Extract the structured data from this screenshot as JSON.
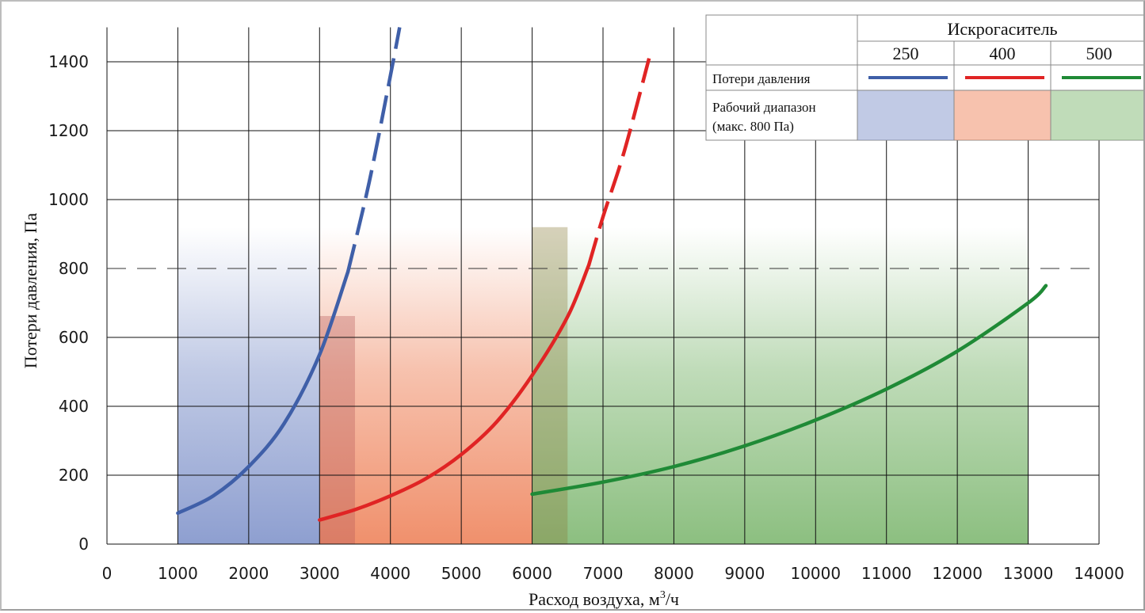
{
  "chart_data": {
    "type": "line",
    "xlabel": "Расход воздуха, м",
    "xlabel_sup": "3",
    "xlabel_tail": "/ч",
    "ylabel": "Потери давления, Па",
    "xlim": [
      0,
      14000
    ],
    "ylim": [
      0,
      1500
    ],
    "x_ticks": [
      "0",
      "1000",
      "2000",
      "3000",
      "4000",
      "5000",
      "6000",
      "7000",
      "8000",
      "9000",
      "10000",
      "11000",
      "12000",
      "13000",
      "14000"
    ],
    "y_ticks": [
      "0",
      "200",
      "400",
      "600",
      "800",
      "1000",
      "1200",
      "1400"
    ],
    "x_tick_values": [
      0,
      1000,
      2000,
      3000,
      4000,
      5000,
      6000,
      7000,
      8000,
      9000,
      10000,
      11000,
      12000,
      13000,
      14000
    ],
    "y_tick_values": [
      0,
      200,
      400,
      600,
      800,
      1000,
      1200,
      1400
    ],
    "grid": true,
    "reference_line": {
      "y": 800,
      "style": "dashed"
    },
    "series": [
      {
        "name": "250",
        "color": "#3f5fa8",
        "range_color": "#8e9fd0",
        "working_range": [
          1000,
          3000
        ],
        "solid_until": 3400,
        "points": [
          [
            1000,
            90
          ],
          [
            1500,
            140
          ],
          [
            2000,
            225
          ],
          [
            2500,
            350
          ],
          [
            3000,
            550
          ],
          [
            3400,
            790
          ],
          [
            3700,
            1050
          ],
          [
            4000,
            1360
          ],
          [
            4130,
            1500
          ]
        ]
      },
      {
        "name": "400",
        "color": "#e02424",
        "range_color": "#f0906c",
        "working_range": [
          3000,
          6000
        ],
        "solid_until": 6800,
        "points": [
          [
            3000,
            70
          ],
          [
            3500,
            100
          ],
          [
            4000,
            140
          ],
          [
            4500,
            190
          ],
          [
            5000,
            260
          ],
          [
            5500,
            355
          ],
          [
            6000,
            490
          ],
          [
            6500,
            660
          ],
          [
            6800,
            810
          ],
          [
            7000,
            950
          ],
          [
            7300,
            1140
          ],
          [
            7650,
            1410
          ]
        ]
      },
      {
        "name": "500",
        "color": "#1f8a36",
        "range_color": "#8cbf80",
        "working_range": [
          6000,
          13000
        ],
        "solid_until": 13250,
        "points": [
          [
            6000,
            145
          ],
          [
            7000,
            180
          ],
          [
            8000,
            225
          ],
          [
            9000,
            285
          ],
          [
            10000,
            360
          ],
          [
            11000,
            450
          ],
          [
            12000,
            560
          ],
          [
            13000,
            700
          ],
          [
            13250,
            750
          ]
        ]
      }
    ],
    "legend": {
      "placement": "top-right",
      "header": "Искрогаситель",
      "columns": [
        "250",
        "400",
        "500"
      ],
      "row1_label": "Потери давления",
      "row2_label_line1": "Рабочий диапазон",
      "row2_label_line2": "(макс. 800 Па)"
    }
  }
}
